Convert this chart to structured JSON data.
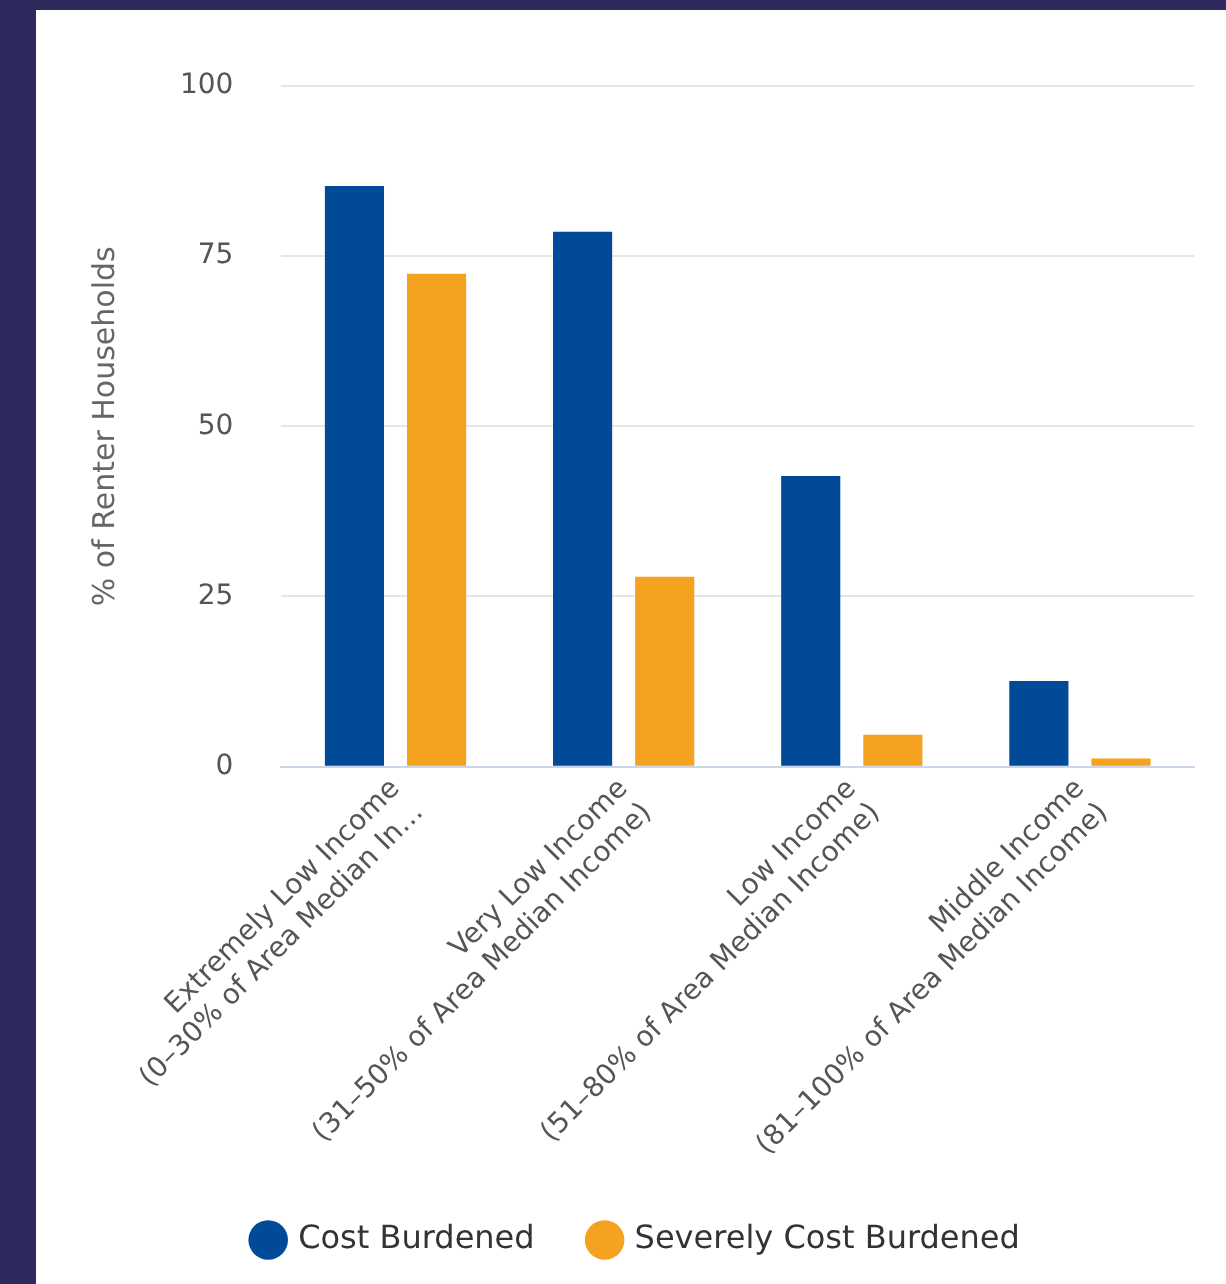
{
  "chart_data": {
    "type": "bar",
    "ylabel": "% of Renter Households",
    "categories": [
      "Extremely Low Income\n(0–30% of Area Median In…",
      "Very Low Income\n(31–50% of Area Median Income)",
      "Low Income\n(51–80% of Area Median Income)",
      "Middle Income\n(81–100% of Area Median Income)"
    ],
    "series": [
      {
        "name": "Cost Burdened",
        "color": "#004a97",
        "values": [
          85.3,
          78.6,
          42.7,
          12.6
        ]
      },
      {
        "name": "Severely Cost Burdened",
        "color": "#f4a21f",
        "values": [
          72.4,
          27.9,
          4.7,
          1.2
        ]
      }
    ],
    "ylim": [
      0,
      100
    ],
    "yticks": [
      0,
      25,
      50,
      75,
      100
    ],
    "grid": "y",
    "legend": "bottom"
  }
}
